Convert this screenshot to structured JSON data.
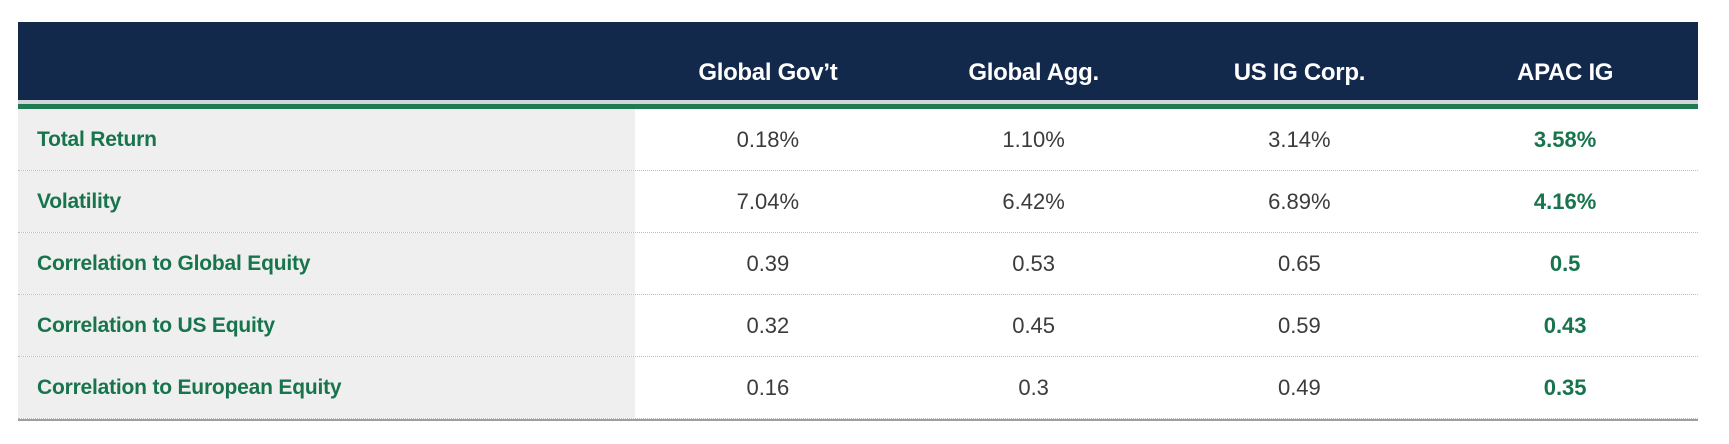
{
  "table": {
    "corner_label": "",
    "columns": [
      "Global Gov’t",
      "Global Agg.",
      "US IG Corp.",
      "APAC IG"
    ],
    "rows": [
      {
        "label": "Total Return",
        "values": [
          "0.18%",
          "1.10%",
          "3.14%",
          "3.58%"
        ]
      },
      {
        "label": "Volatility",
        "values": [
          "7.04%",
          "6.42%",
          "6.89%",
          "4.16%"
        ]
      },
      {
        "label": "Correlation to Global Equity",
        "values": [
          "0.39",
          "0.53",
          "0.65",
          "0.5"
        ]
      },
      {
        "label": "Correlation to US Equity",
        "values": [
          "0.32",
          "0.45",
          "0.59",
          "0.43"
        ]
      },
      {
        "label": "Correlation to European Equity",
        "values": [
          "0.16",
          "0.3",
          "0.49",
          "0.35"
        ]
      }
    ],
    "highlight_column": "APAC IG"
  },
  "colors": {
    "header_bg": "#13294b",
    "header_text": "#ffffff",
    "accent_green_text": "#17744c",
    "accent_green_line": "#1e7a50",
    "label_column_bg": "#efefef",
    "value_text": "#3b3b3b",
    "row_separator": "#bdbdbd",
    "bottom_border": "#9e9e9e"
  },
  "chart_data": {
    "type": "table",
    "title": "",
    "columns": [
      "",
      "Global Gov’t",
      "Global Agg.",
      "US IG Corp.",
      "APAC IG"
    ],
    "rows": [
      [
        "Total Return",
        "0.18%",
        "1.10%",
        "3.14%",
        "3.58%"
      ],
      [
        "Volatility",
        "7.04%",
        "6.42%",
        "6.89%",
        "4.16%"
      ],
      [
        "Correlation to Global Equity",
        0.39,
        0.53,
        0.65,
        0.5
      ],
      [
        "Correlation to US Equity",
        0.32,
        0.45,
        0.59,
        0.43
      ],
      [
        "Correlation to European Equity",
        0.16,
        0.3,
        0.49,
        0.35
      ]
    ],
    "notes": "Last column (APAC IG) values emphasized in bold green; row labels bold green on light gray; header row navy with white text."
  }
}
